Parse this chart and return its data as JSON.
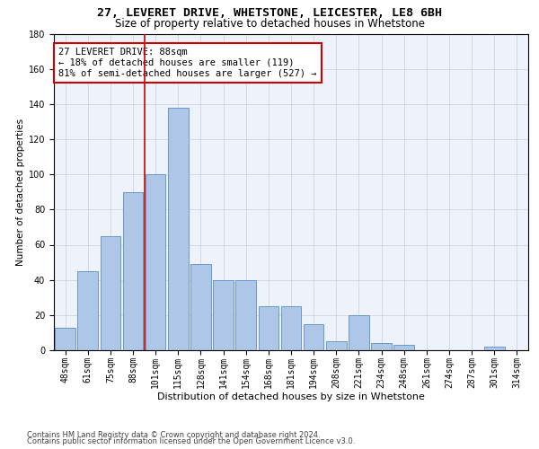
{
  "title1": "27, LEVERET DRIVE, WHETSTONE, LEICESTER, LE8 6BH",
  "title2": "Size of property relative to detached houses in Whetstone",
  "xlabel": "Distribution of detached houses by size in Whetstone",
  "ylabel": "Number of detached properties",
  "bar_labels": [
    "48sqm",
    "61sqm",
    "75sqm",
    "88sqm",
    "101sqm",
    "115sqm",
    "128sqm",
    "141sqm",
    "154sqm",
    "168sqm",
    "181sqm",
    "194sqm",
    "208sqm",
    "221sqm",
    "234sqm",
    "248sqm",
    "261sqm",
    "274sqm",
    "287sqm",
    "301sqm",
    "314sqm"
  ],
  "bar_values": [
    13,
    45,
    65,
    90,
    100,
    138,
    49,
    40,
    40,
    25,
    25,
    15,
    5,
    20,
    4,
    3,
    0,
    0,
    0,
    2,
    0
  ],
  "bar_color": "#aec6e8",
  "bar_edge_color": "#5a8fc0",
  "vline_x": 3.5,
  "vline_color": "#cc0000",
  "annotation_text": "27 LEVERET DRIVE: 88sqm\n← 18% of detached houses are smaller (119)\n81% of semi-detached houses are larger (527) →",
  "annotation_box_color": "#ffffff",
  "annotation_box_edge": "#cc0000",
  "ylim": [
    0,
    180
  ],
  "yticks": [
    0,
    20,
    40,
    60,
    80,
    100,
    120,
    140,
    160,
    180
  ],
  "bg_color": "#eef2fb",
  "grid_color": "#c8cdd8",
  "footer1": "Contains HM Land Registry data © Crown copyright and database right 2024.",
  "footer2": "Contains public sector information licensed under the Open Government Licence v3.0.",
  "title1_fontsize": 9.5,
  "title2_fontsize": 8.5,
  "xlabel_fontsize": 8,
  "ylabel_fontsize": 7.5,
  "tick_fontsize": 7,
  "annotation_fontsize": 7.5,
  "footer_fontsize": 6
}
